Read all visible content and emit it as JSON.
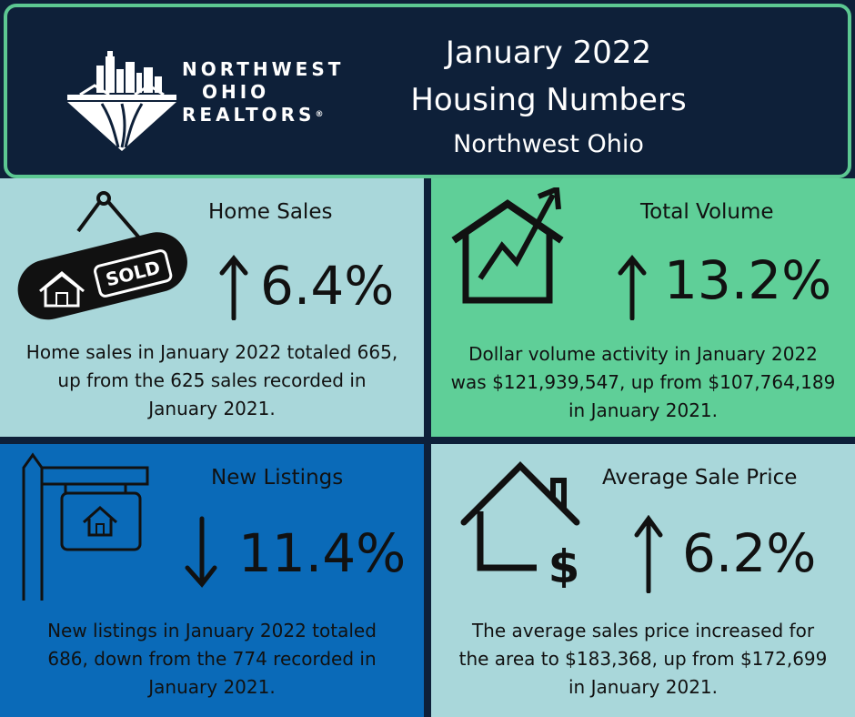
{
  "header": {
    "logo": {
      "line1": "NORTHWEST",
      "line2": "OHIO",
      "line3": "REALTORS",
      "mark": "®"
    },
    "title": "January 2022",
    "subtitle": "Housing Numbers",
    "region": "Northwest Ohio"
  },
  "panels": {
    "home_sales": {
      "label": "Home Sales",
      "change": "6.4%",
      "direction": "up",
      "icon": "sold-sign-icon",
      "sign_text": "SOLD",
      "desc": [
        "Home sales in January 2022 totaled 665,",
        "up from the 625  sales recorded in",
        "January 2021."
      ]
    },
    "total_volume": {
      "label": "Total Volume",
      "change": "13.2%",
      "direction": "up",
      "icon": "house-trend-icon",
      "desc": [
        "Dollar volume activity in  January 2022",
        "was $121,939,547, up from $107,764,189",
        "in January 2021."
      ]
    },
    "new_listings": {
      "label": "New Listings",
      "change": "11.4%",
      "direction": "down",
      "icon": "listing-signpost-icon",
      "desc": [
        "New listings in January 2022 totaled",
        "686, down from the 774 recorded in",
        "January 2021."
      ]
    },
    "avg_price": {
      "label": "Average Sale Price",
      "change": "6.2%",
      "direction": "up",
      "icon": "house-dollar-icon",
      "desc": [
        "The average sales price increased for",
        "the area to $183,368, up from $172,699",
        "in January 2021."
      ]
    }
  },
  "colors": {
    "navy": "#0e2039",
    "accent_green": "#5cc892",
    "light_teal": "#a9d7da",
    "green": "#5fcf98",
    "blue": "#0a6ab8"
  }
}
